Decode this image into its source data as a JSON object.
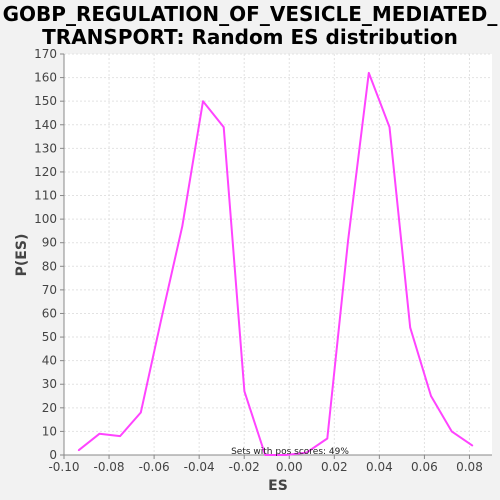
{
  "chart_data": {
    "type": "line",
    "title_lines": [
      "GOBP_REGULATION_OF_VESICLE_MEDIATED_",
      "TRANSPORT: Random ES distribution"
    ],
    "xlabel": "ES",
    "ylabel": "P(ES)",
    "xlim": [
      -0.1,
      0.09
    ],
    "ylim": [
      0,
      170
    ],
    "xticks": [
      "-0.10",
      "-0.08",
      "-0.06",
      "-0.04",
      "-0.02",
      "0.00",
      "0.02",
      "0.04",
      "0.06",
      "0.08"
    ],
    "xtick_values": [
      -0.1,
      -0.08,
      -0.06,
      -0.04,
      -0.02,
      0.0,
      0.02,
      0.04,
      0.06,
      0.08
    ],
    "yticks": [
      "0",
      "10",
      "20",
      "30",
      "40",
      "50",
      "60",
      "70",
      "80",
      "90",
      "100",
      "110",
      "120",
      "130",
      "140",
      "150",
      "160",
      "170"
    ],
    "ytick_values": [
      0,
      10,
      20,
      30,
      40,
      50,
      60,
      70,
      80,
      90,
      100,
      110,
      120,
      130,
      140,
      150,
      160,
      170
    ],
    "grid": true,
    "annotation": "Sets with pos scores: 49%",
    "series": [
      {
        "color": "#ff44ff",
        "x": [
          -0.0935,
          -0.0843,
          -0.0751,
          -0.0659,
          -0.0567,
          -0.0475,
          -0.0383,
          -0.0291,
          -0.0199,
          -0.0107,
          -0.0015,
          0.0077,
          0.0169,
          0.0261,
          0.0353,
          0.0445,
          0.0537,
          0.0629,
          0.0721,
          0.0813
        ],
        "y": [
          2,
          9,
          8,
          18,
          58,
          97,
          150,
          139,
          27,
          0,
          0,
          1,
          7,
          91,
          162,
          139,
          54,
          25,
          10,
          4
        ]
      }
    ]
  }
}
